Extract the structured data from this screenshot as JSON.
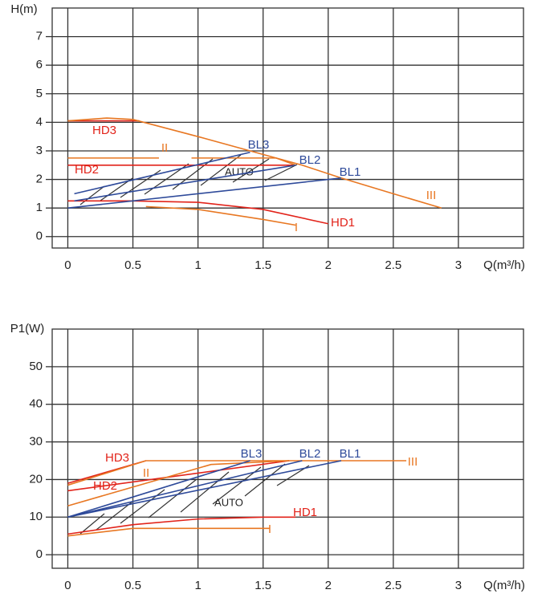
{
  "chart_data": [
    {
      "type": "line",
      "ylabel": "H(m)",
      "xlabel": "Q(m³/h)",
      "xlim": [
        -0.12,
        3.5
      ],
      "ylim": [
        -0.4,
        8
      ],
      "xticks": [
        0,
        0.5,
        1,
        1.5,
        2,
        2.5,
        3
      ],
      "yticks": [
        0,
        1,
        2,
        3,
        4,
        5,
        6,
        7
      ],
      "grid": true,
      "annotation": "AUTO",
      "series": [
        {
          "name": "HD3",
          "color": "#e2231a",
          "x": [
            0,
            0.55
          ],
          "values": [
            4.05,
            4.05
          ]
        },
        {
          "name": "III",
          "color": "#e87722",
          "x": [
            0,
            0.3,
            0.5,
            1.0,
            1.4,
            1.8,
            2.1,
            2.5,
            2.87
          ],
          "values": [
            4.05,
            4.15,
            4.1,
            3.5,
            3.0,
            2.5,
            2.05,
            1.5,
            1.0
          ]
        },
        {
          "name": "HD2",
          "color": "#e2231a",
          "x": [
            0,
            1.75
          ],
          "values": [
            2.5,
            2.5
          ]
        },
        {
          "name": "II",
          "color": "#e87722",
          "x": [
            0,
            0.7,
            0.8,
            0.95,
            1.6,
            1.75
          ],
          "values": [
            2.75,
            2.75,
            null,
            2.75,
            2.75,
            2.5
          ]
        },
        {
          "name": "HD1",
          "color": "#e2231a",
          "x": [
            0,
            0.5,
            1.0,
            1.5,
            2.0
          ],
          "values": [
            1.25,
            1.25,
            1.2,
            0.95,
            0.45
          ]
        },
        {
          "name": "I",
          "color": "#e87722",
          "x": [
            0.6,
            1.0,
            1.5,
            1.75
          ],
          "values": [
            1.05,
            0.95,
            0.6,
            0.4
          ]
        },
        {
          "name": "BL3",
          "color": "#2e4a9a",
          "x": [
            0.05,
            1.4
          ],
          "values": [
            1.5,
            2.95
          ]
        },
        {
          "name": "BL2",
          "color": "#2e4a9a",
          "x": [
            0.05,
            1.75
          ],
          "values": [
            1.25,
            2.5
          ]
        },
        {
          "name": "BL1",
          "color": "#2e4a9a",
          "x": [
            0,
            2.1
          ],
          "values": [
            1.0,
            2.05
          ]
        }
      ]
    },
    {
      "type": "line",
      "ylabel": "P1(W)",
      "xlabel": "Q(m³/h)",
      "xlim": [
        -0.12,
        3.5
      ],
      "ylim": [
        -3.6,
        60
      ],
      "xticks": [
        0,
        0.5,
        1,
        1.5,
        2,
        2.5,
        3
      ],
      "yticks": [
        0,
        10,
        20,
        30,
        40,
        50
      ],
      "grid": true,
      "annotation": "AUTO",
      "series": [
        {
          "name": "HD3",
          "color": "#e2231a",
          "x": [
            0,
            0.6
          ],
          "values": [
            19,
            25
          ]
        },
        {
          "name": "III",
          "color": "#e87722",
          "x": [
            0,
            0.6,
            2.6
          ],
          "values": [
            18.5,
            25,
            25
          ]
        },
        {
          "name": "HD2",
          "color": "#e2231a",
          "x": [
            0,
            1.7
          ],
          "values": [
            17,
            25
          ]
        },
        {
          "name": "II",
          "color": "#e87722",
          "x": [
            0,
            1.1,
            1.7
          ],
          "values": [
            13,
            24,
            25
          ]
        },
        {
          "name": "HD1",
          "color": "#e2231a",
          "x": [
            0,
            0.5,
            1.0,
            1.5,
            1.75
          ],
          "values": [
            5.5,
            8,
            9.5,
            10,
            10
          ]
        },
        {
          "name": "I",
          "color": "#e87722",
          "x": [
            0,
            0.5,
            1.55
          ],
          "values": [
            5,
            7,
            7
          ]
        },
        {
          "name": "BL3",
          "color": "#2e4a9a",
          "x": [
            0,
            1.4
          ],
          "values": [
            10,
            25
          ]
        },
        {
          "name": "BL2",
          "color": "#2e4a9a",
          "x": [
            0,
            1.8
          ],
          "values": [
            10,
            25
          ]
        },
        {
          "name": "BL1",
          "color": "#2e4a9a",
          "x": [
            0,
            2.1
          ],
          "values": [
            10,
            25
          ]
        }
      ]
    }
  ]
}
